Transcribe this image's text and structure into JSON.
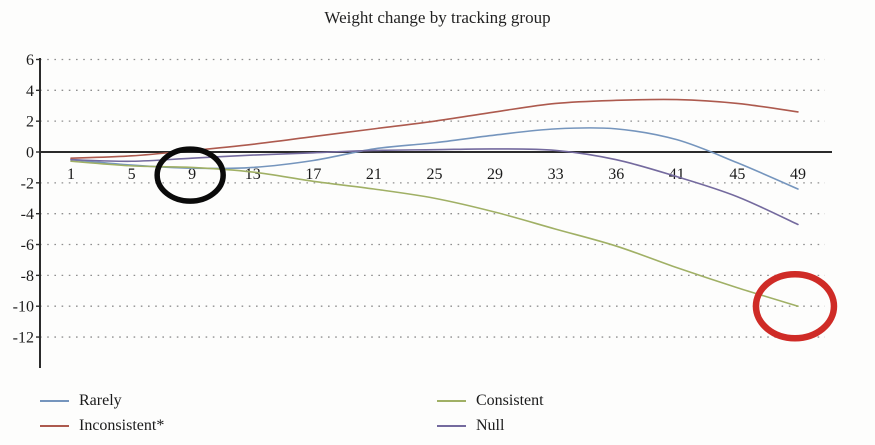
{
  "chart_data": {
    "type": "line",
    "title": "Weight change by tracking group",
    "xlabel": "",
    "ylabel": "",
    "x_tick_labels": [
      "1",
      "5",
      "9",
      "13",
      "17",
      "21",
      "25",
      "29",
      "33",
      "36",
      "41",
      "45",
      "49"
    ],
    "y_ticks": [
      6,
      4,
      2,
      0,
      -2,
      -4,
      -6,
      -8,
      -10,
      -12
    ],
    "ylim": [
      -13.5,
      6.8
    ],
    "grid": "horizontal dotted lines at each even value, none at zero",
    "zero_line": "solid dark horizontal line at y=0",
    "legend_position": "bottom, two columns",
    "axis_color": "#2b2b2b",
    "grid_color": "#8f8f8f",
    "series": [
      {
        "name": "Rarely",
        "color": "#7595bd",
        "values": [
          -0.5,
          -0.85,
          -1.05,
          -1.0,
          -0.55,
          0.2,
          0.6,
          1.1,
          1.5,
          1.5,
          0.8,
          -0.7,
          -2.4
        ]
      },
      {
        "name": "Inconsistent*",
        "color": "#ad5a4e",
        "values": [
          -0.4,
          -0.25,
          0.1,
          0.5,
          1.0,
          1.5,
          2.0,
          2.6,
          3.15,
          3.35,
          3.4,
          3.15,
          2.6
        ]
      },
      {
        "name": "Consistent",
        "color": "#a0b065",
        "values": [
          -0.6,
          -0.9,
          -1.0,
          -1.3,
          -1.9,
          -2.4,
          -3.0,
          -3.9,
          -5.0,
          -6.1,
          -7.5,
          -8.8,
          -10.0
        ]
      },
      {
        "name": "Null",
        "color": "#746a9e",
        "values": [
          -0.5,
          -0.6,
          -0.4,
          -0.2,
          -0.05,
          0.1,
          0.15,
          0.2,
          0.1,
          -0.5,
          -1.6,
          -2.9,
          -4.7
        ]
      }
    ],
    "legend_columns": [
      [
        "Rarely",
        "Inconsistent*"
      ],
      [
        "Consistent",
        "Null"
      ]
    ],
    "annotations": [
      {
        "shape": "ellipse",
        "color": "#0a0a0a",
        "meaning": "hand-drawn black circle around x tick label 9",
        "x_tick": "9",
        "y_value": -1.5
      },
      {
        "shape": "ellipse",
        "color": "#cf2b26",
        "meaning": "hand-drawn red circle around end of Consistent line at about -10",
        "x_tick": "49",
        "y_value": -10
      }
    ]
  }
}
